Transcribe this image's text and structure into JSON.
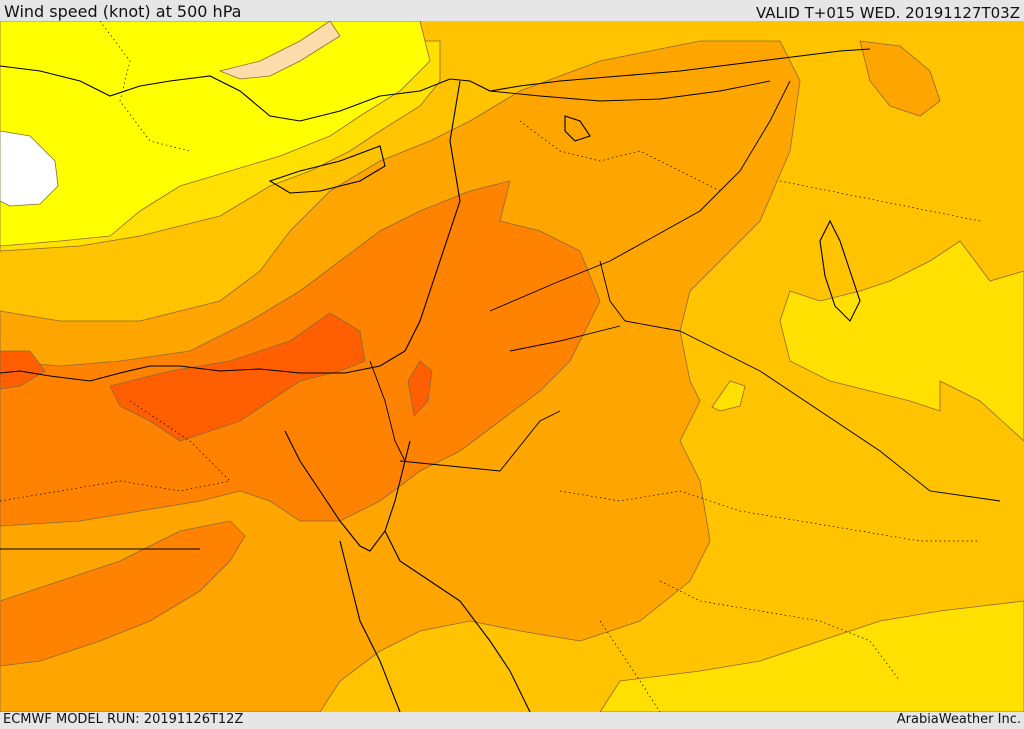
{
  "header": {
    "title": "Wind speed (knot) at 500 hPa",
    "valid": "VALID T+015 WED. 20191127T03Z"
  },
  "footer": {
    "model_run": "ECMWF MODEL RUN: 20191126T12Z",
    "credit": "ArabiaWeather Inc."
  },
  "map": {
    "fill_colors": {
      "lowest": "#ffffff",
      "very_low": "#ffffcc",
      "low": "#ffff00",
      "light": "#ffe000",
      "medium": "#ffc300",
      "medium_high": "#ffa500",
      "high": "#ff8200",
      "very_high": "#ff5f00",
      "pale_band": "#fcdcaa"
    },
    "line_colors": {
      "coastline": "#000000",
      "border": "#000000",
      "contour": "#8a6a3a"
    }
  }
}
